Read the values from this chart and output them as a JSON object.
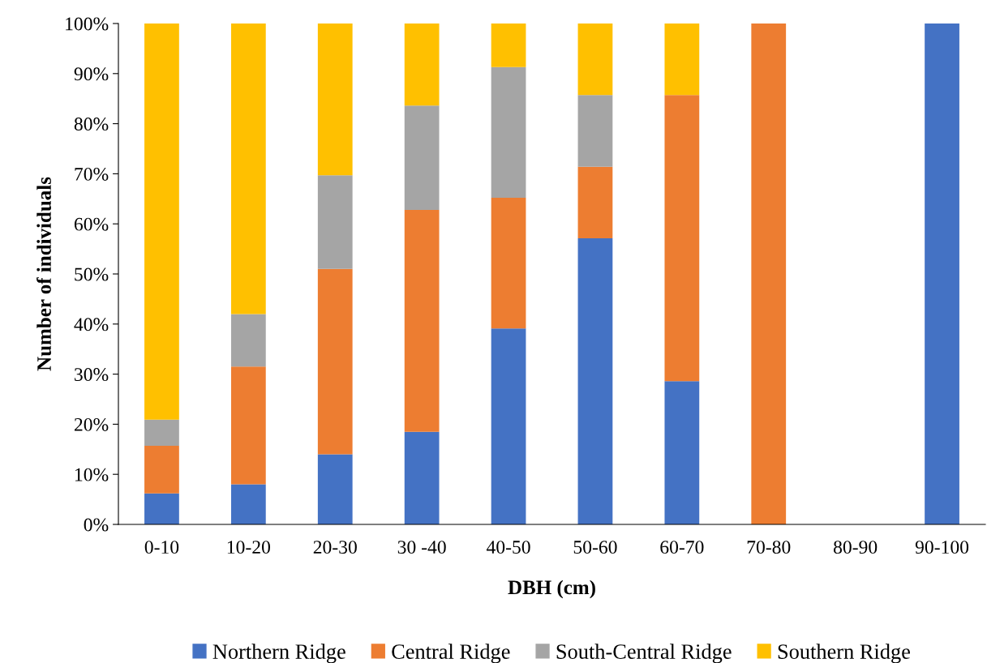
{
  "chart_data": {
    "type": "bar",
    "stacked": true,
    "xlabel": "DBH (cm)",
    "ylabel": "Number of individuals",
    "categories": [
      "0-10",
      "10-20",
      "20-30",
      "30 -40",
      "40-50",
      "50-60",
      "60-70",
      "70-80",
      "80-90",
      "90-100"
    ],
    "series": [
      {
        "name": "Northern Ridge",
        "color": "#4472c4",
        "values": [
          6.2,
          8.0,
          14.0,
          18.5,
          39.1,
          57.1,
          28.6,
          0,
          0,
          100
        ]
      },
      {
        "name": "Central Ridge",
        "color": "#ed7d31",
        "values": [
          9.5,
          23.5,
          37.0,
          44.3,
          26.1,
          14.3,
          57.1,
          100,
          0,
          0
        ]
      },
      {
        "name": "South-Central Ridge",
        "color": "#a5a5a5",
        "values": [
          5.2,
          10.5,
          18.7,
          20.8,
          26.1,
          14.3,
          0,
          0,
          0,
          0
        ]
      },
      {
        "name": "Southern Ridge",
        "color": "#ffc000",
        "values": [
          79.1,
          58.0,
          30.3,
          16.4,
          8.7,
          14.3,
          14.3,
          0,
          0,
          0
        ]
      }
    ],
    "ylim": [
      0,
      100
    ],
    "yticks": [
      {
        "value": 0,
        "label": "0%"
      },
      {
        "value": 10,
        "label": "10%"
      },
      {
        "value": 20,
        "label": "20%"
      },
      {
        "value": 30,
        "label": "30%"
      },
      {
        "value": 40,
        "label": "40%"
      },
      {
        "value": 50,
        "label": "50%"
      },
      {
        "value": 60,
        "label": "60%"
      },
      {
        "value": 70,
        "label": "70%"
      },
      {
        "value": 80,
        "label": "80%"
      },
      {
        "value": 90,
        "label": "90%"
      },
      {
        "value": 100,
        "label": "100%"
      }
    ],
    "grid": false,
    "legend": "bottom"
  }
}
